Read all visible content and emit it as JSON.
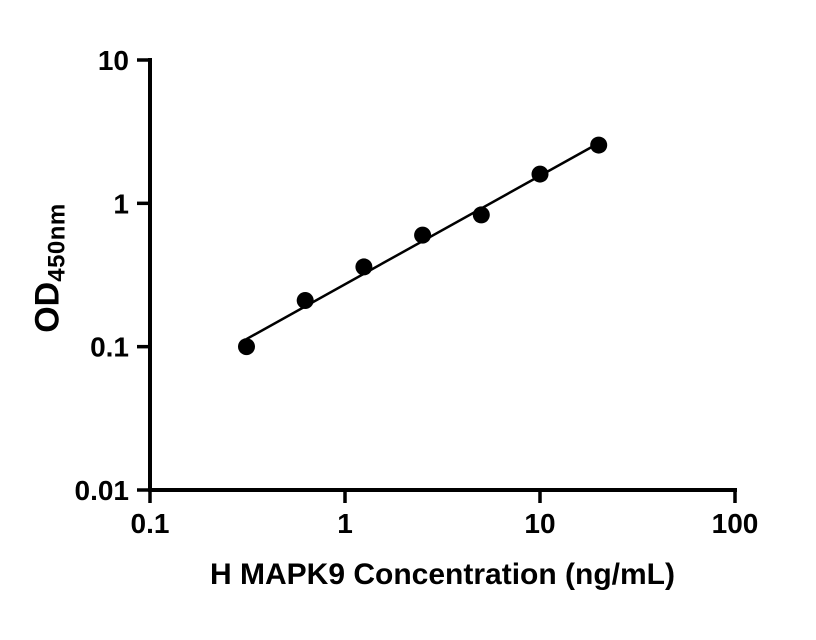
{
  "chart_data": {
    "type": "scatter",
    "title": "",
    "xlabel": "H MAPK9 Concentration (ng/mL)",
    "ylabel_main": "OD",
    "ylabel_sub": "450nm",
    "x_scale": "log",
    "y_scale": "log",
    "xlim": [
      0.1,
      100
    ],
    "ylim": [
      0.01,
      10
    ],
    "x_ticks": [
      0.1,
      1,
      10,
      100
    ],
    "x_tick_labels": [
      "0.1",
      "1",
      "10",
      "100"
    ],
    "y_ticks": [
      0.01,
      0.1,
      1,
      10
    ],
    "y_tick_labels": [
      "0.01",
      "0.1",
      "1",
      "10"
    ],
    "x": [
      0.3125,
      0.625,
      1.25,
      2.5,
      5,
      10,
      20
    ],
    "y": [
      0.1,
      0.21,
      0.36,
      0.6,
      0.83,
      1.6,
      2.55
    ],
    "trendline": {
      "x_start": 0.3125,
      "y_start": 0.113,
      "x_end": 20,
      "y_end": 2.63
    },
    "grid": false,
    "legend": null,
    "axis_color": "#000000",
    "marker_color": "#000000",
    "line_color": "#000000",
    "background": "#ffffff"
  }
}
